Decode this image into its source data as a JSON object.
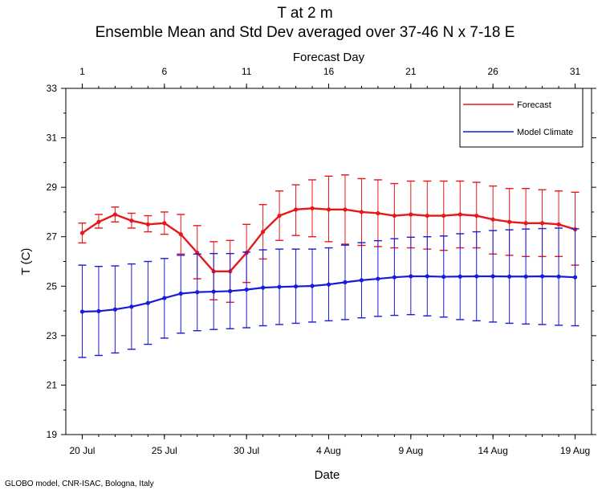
{
  "title": "T at 2 m",
  "subtitle": "Ensemble Mean and Std Dev averaged over 37-46 N x 7-18 E",
  "credit": "GLOBO model, CNR-ISAC, Bologna, Italy",
  "chart_data": {
    "type": "line",
    "title": "T at 2 m",
    "subtitle": "Ensemble Mean and Std Dev averaged over 37-46 N x 7-18 E",
    "xlabel": "Date",
    "x2label": "Forecast Day",
    "ylabel": "T (C)",
    "ylim": [
      19,
      33
    ],
    "yticks": [
      19,
      21,
      23,
      25,
      27,
      29,
      31,
      33
    ],
    "xlim": [
      0,
      32
    ],
    "xtick_days": [
      1,
      6,
      11,
      16,
      21,
      26,
      31
    ],
    "xtick_dates": [
      "20 Jul",
      "25 Jul",
      "30 Jul",
      "4 Aug",
      "9 Aug",
      "14 Aug",
      "19 Aug"
    ],
    "top_tick_labels": [
      "1",
      "6",
      "11",
      "16",
      "21",
      "26",
      "31"
    ],
    "days": [
      1,
      2,
      3,
      4,
      5,
      6,
      7,
      8,
      9,
      10,
      11,
      12,
      13,
      14,
      15,
      16,
      17,
      18,
      19,
      20,
      21,
      22,
      23,
      24,
      25,
      26,
      27,
      28,
      29,
      30,
      31
    ],
    "legend": {
      "placement": "top-right"
    },
    "series": [
      {
        "name": "Forecast",
        "color": "#e8171b",
        "values": [
          27.15,
          27.6,
          27.9,
          27.65,
          27.5,
          27.55,
          27.1,
          26.35,
          25.6,
          25.6,
          26.35,
          27.2,
          27.85,
          28.1,
          28.15,
          28.1,
          28.1,
          28.0,
          27.95,
          27.85,
          27.9,
          27.85,
          27.85,
          27.9,
          27.85,
          27.7,
          27.6,
          27.55,
          27.55,
          27.5,
          27.3
        ],
        "err_low": [
          26.75,
          27.35,
          27.6,
          27.35,
          27.2,
          27.1,
          26.3,
          25.3,
          24.45,
          24.35,
          25.15,
          26.1,
          26.85,
          27.05,
          27.0,
          26.8,
          26.7,
          26.65,
          26.6,
          26.55,
          26.55,
          26.5,
          26.45,
          26.55,
          26.55,
          26.3,
          26.25,
          26.2,
          26.2,
          26.2,
          25.85
        ],
        "err_high": [
          27.55,
          27.9,
          28.2,
          27.95,
          27.85,
          28.0,
          27.9,
          27.45,
          26.8,
          26.85,
          27.5,
          28.3,
          28.85,
          29.1,
          29.3,
          29.45,
          29.5,
          29.35,
          29.3,
          29.15,
          29.25,
          29.25,
          29.25,
          29.25,
          29.2,
          29.05,
          28.95,
          28.95,
          28.9,
          28.85,
          28.8
        ]
      },
      {
        "name": "Model Climate",
        "color": "#1a1ad9",
        "values": [
          23.97,
          23.99,
          24.06,
          24.17,
          24.32,
          24.52,
          24.7,
          24.76,
          24.78,
          24.8,
          24.86,
          24.94,
          24.97,
          24.99,
          25.01,
          25.07,
          25.16,
          25.24,
          25.3,
          25.36,
          25.4,
          25.4,
          25.38,
          25.39,
          25.4,
          25.4,
          25.39,
          25.39,
          25.4,
          25.39,
          25.36
        ],
        "err_low": [
          22.12,
          22.2,
          22.3,
          22.45,
          22.65,
          22.9,
          23.1,
          23.2,
          23.25,
          23.28,
          23.32,
          23.4,
          23.45,
          23.5,
          23.55,
          23.6,
          23.65,
          23.72,
          23.78,
          23.82,
          23.85,
          23.8,
          23.75,
          23.65,
          23.6,
          23.55,
          23.5,
          23.47,
          23.45,
          23.42,
          23.4
        ],
        "err_high": [
          25.85,
          25.8,
          25.82,
          25.9,
          26.0,
          26.12,
          26.25,
          26.3,
          26.32,
          26.32,
          26.38,
          26.47,
          26.5,
          26.5,
          26.5,
          26.55,
          26.66,
          26.76,
          26.84,
          26.92,
          26.98,
          27.0,
          27.03,
          27.12,
          27.2,
          27.25,
          27.28,
          27.31,
          27.33,
          27.35,
          27.32
        ]
      }
    ]
  }
}
